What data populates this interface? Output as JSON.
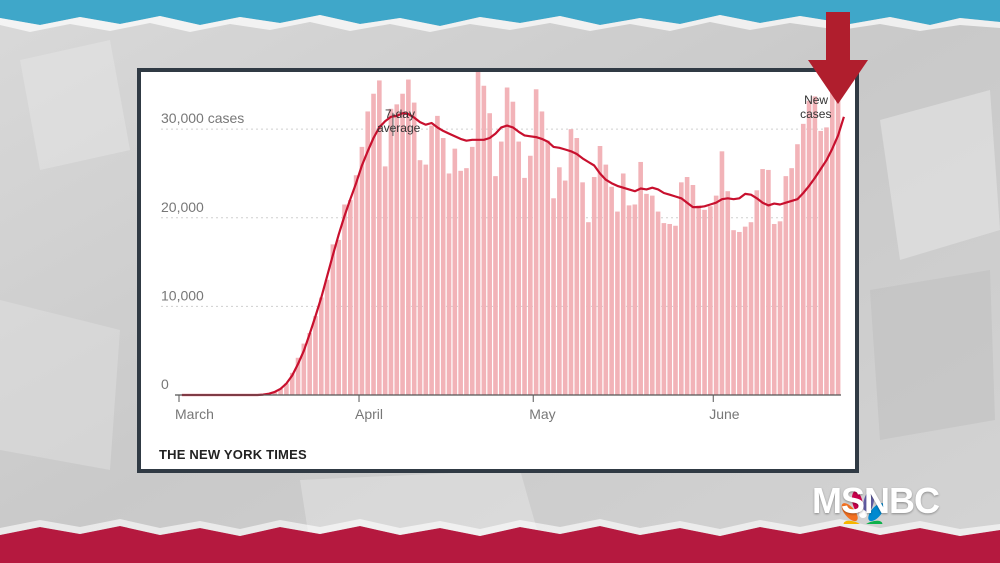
{
  "colors": {
    "bar": "#f2b3b8",
    "line": "#c8102e",
    "background": "#cfcfcf",
    "top_band": "#3fa7c9",
    "bottom_band": "#b5193f",
    "frame": "#303a44",
    "arrow": "#b01e2d"
  },
  "source": "THE NEW YORK TIMES",
  "brand": "MSNBC",
  "chart_data": {
    "type": "bar",
    "title": "",
    "xlabel": "",
    "ylabel": "",
    "ylim": [
      0,
      36000
    ],
    "y_ticks": [
      {
        "value": 0,
        "label": "0"
      },
      {
        "value": 10000,
        "label": "10,000"
      },
      {
        "value": 20000,
        "label": "20,000"
      },
      {
        "value": 30000,
        "label": "30,000 cases"
      }
    ],
    "x_ticks": [
      {
        "index": 0,
        "label": "March"
      },
      {
        "index": 31,
        "label": "April"
      },
      {
        "index": 61,
        "label": "May"
      },
      {
        "index": 92,
        "label": "June"
      }
    ],
    "grid": true,
    "series": [
      {
        "kind": "bar",
        "values": [
          0,
          0,
          0,
          0,
          0,
          0,
          0,
          0,
          0,
          0,
          0,
          0,
          0,
          0,
          0,
          100,
          300,
          700,
          1300,
          2500,
          4200,
          5800,
          7000,
          8900,
          11000,
          13000,
          17000,
          17500,
          21500,
          22000,
          24800,
          28000,
          32000,
          34000,
          35500,
          25800,
          32300,
          32800,
          34000,
          35600,
          33000,
          26500,
          26000,
          30400,
          31500,
          29000,
          25000,
          27800,
          25300,
          25600,
          28000,
          37000,
          34900,
          31800,
          24700,
          28600,
          34700,
          33100,
          28600,
          24500,
          27000,
          34500,
          32000,
          28700,
          22200,
          25700,
          24200,
          30000,
          29000,
          24000,
          19500,
          24600,
          28100,
          26000,
          23500,
          20700,
          25000,
          21400,
          21500,
          26300,
          22700,
          22500,
          20700,
          19400,
          19300,
          19100,
          24000,
          24600,
          23700,
          21400,
          20900,
          21300,
          22500,
          27500,
          23000,
          18600,
          18400,
          19000,
          19500,
          23100,
          25500,
          25400,
          19300,
          19600,
          24700,
          25600,
          28300,
          30600,
          33200,
          33700,
          29800,
          30200,
          35000,
          37300
        ]
      },
      {
        "kind": "line",
        "name": "7-day average",
        "values": [
          0,
          0,
          0,
          0,
          0,
          0,
          0,
          0,
          0,
          0,
          0,
          0,
          0,
          0,
          50,
          150,
          350,
          700,
          1300,
          2200,
          3500,
          5000,
          6900,
          8900,
          11000,
          13400,
          15800,
          18100,
          20200,
          22100,
          23900,
          25900,
          27500,
          29000,
          30200,
          30900,
          31400,
          31500,
          31800,
          31700,
          31300,
          30800,
          30500,
          30700,
          30200,
          29800,
          29500,
          29200,
          28900,
          28700,
          28800,
          28800,
          28800,
          29000,
          29500,
          30200,
          30400,
          30200,
          29700,
          29300,
          29200,
          29100,
          28900,
          28600,
          28000,
          27900,
          27700,
          27500,
          27200,
          26700,
          26300,
          25900,
          25000,
          24300,
          23900,
          23600,
          23400,
          23200,
          23000,
          23300,
          23200,
          23400,
          23200,
          22800,
          22600,
          22400,
          22200,
          21700,
          21200,
          21200,
          21300,
          21500,
          21700,
          22100,
          22200,
          22100,
          22200,
          22700,
          22600,
          22200,
          21700,
          21400,
          21600,
          21500,
          21700,
          21900,
          22100,
          22800,
          23600,
          24500,
          25500,
          26500,
          27800,
          29300,
          31400
        ]
      }
    ],
    "annotations": [
      {
        "target": "line",
        "text_lines": [
          "7-day",
          "average"
        ]
      },
      {
        "target": "bar",
        "text_lines": [
          "New",
          "cases"
        ]
      }
    ]
  }
}
